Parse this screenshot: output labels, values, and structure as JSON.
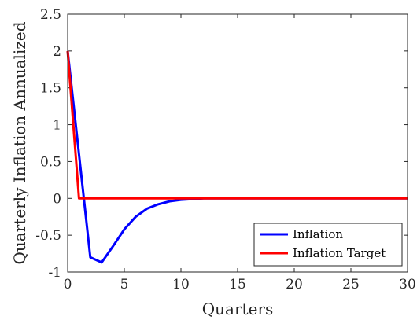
{
  "chart_data": {
    "type": "line",
    "xlabel": "Quarters",
    "ylabel": "Quarterly Inflation Annualized",
    "xlim": [
      0,
      30
    ],
    "ylim": [
      -1,
      2.5
    ],
    "xticks": [
      0,
      5,
      10,
      15,
      20,
      25,
      30
    ],
    "yticks": [
      -1,
      -0.5,
      0,
      0.5,
      1,
      1.5,
      2,
      2.5
    ],
    "xtick_labels": [
      "0",
      "5",
      "10",
      "15",
      "20",
      "25",
      "30"
    ],
    "ytick_labels": [
      "-1",
      "-0.5",
      "0",
      "0.5",
      "1",
      "1.5",
      "2",
      "2.5"
    ],
    "grid": false,
    "legend_position": "bottom-right",
    "series": [
      {
        "name": "Inflation",
        "color": "#0000ff",
        "x": [
          0,
          1,
          2,
          3,
          4,
          5,
          6,
          7,
          8,
          9,
          10,
          11,
          12,
          13,
          14,
          15,
          16,
          17,
          18,
          19,
          20,
          21,
          22,
          23,
          24,
          25,
          26,
          27,
          28,
          29,
          30
        ],
        "y": [
          2.0,
          0.6,
          -0.8,
          -0.87,
          -0.65,
          -0.42,
          -0.25,
          -0.14,
          -0.08,
          -0.04,
          -0.02,
          -0.01,
          0,
          0,
          0,
          0,
          0,
          0,
          0,
          0,
          0,
          0,
          0,
          0,
          0,
          0,
          0,
          0,
          0,
          0,
          0
        ]
      },
      {
        "name": "Inflation Target",
        "color": "#ff0000",
        "x": [
          0,
          1,
          2,
          3,
          4,
          5,
          6,
          7,
          8,
          9,
          10,
          11,
          12,
          13,
          14,
          15,
          16,
          17,
          18,
          19,
          20,
          21,
          22,
          23,
          24,
          25,
          26,
          27,
          28,
          29,
          30
        ],
        "y": [
          2.0,
          0,
          0,
          0,
          0,
          0,
          0,
          0,
          0,
          0,
          0,
          0,
          0,
          0,
          0,
          0,
          0,
          0,
          0,
          0,
          0,
          0,
          0,
          0,
          0,
          0,
          0,
          0,
          0,
          0,
          0
        ]
      }
    ]
  }
}
